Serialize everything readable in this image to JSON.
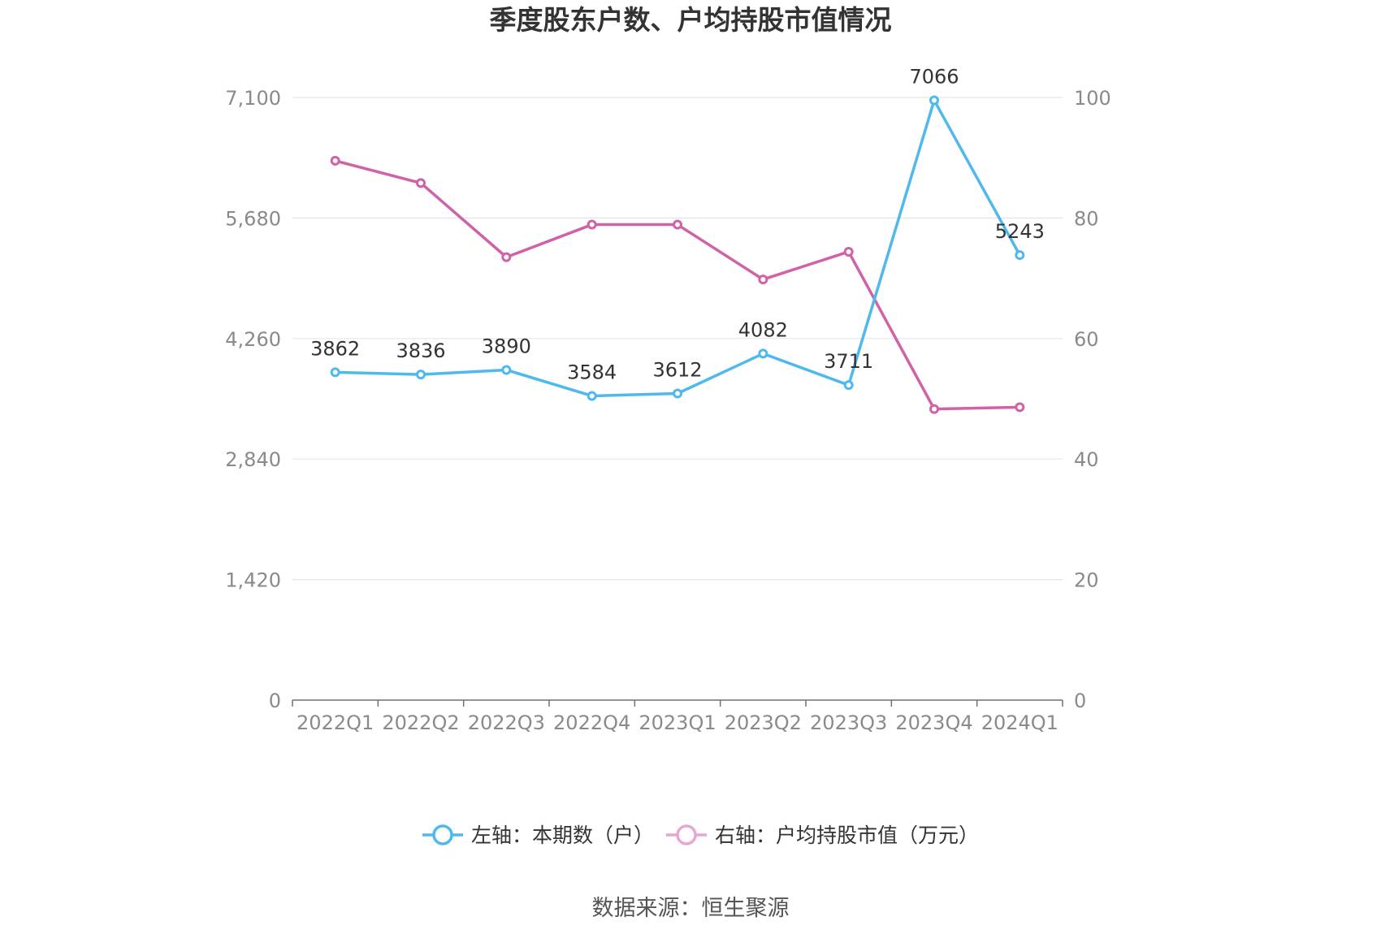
{
  "source": "数据来源：恒生聚源",
  "chart_data": {
    "type": "line",
    "title": "季度股东户数、户均持股市值情况",
    "categories": [
      "2022Q1",
      "2022Q2",
      "2022Q3",
      "2022Q4",
      "2023Q1",
      "2023Q2",
      "2023Q3",
      "2023Q4",
      "2024Q1"
    ],
    "axes": {
      "left": {
        "min": 0,
        "max": 7100,
        "ticks": [
          0,
          1420,
          2840,
          4260,
          5680,
          7100
        ],
        "tick_labels": [
          "0",
          "1,420",
          "2,840",
          "4,260",
          "5,680",
          "7,100"
        ]
      },
      "right": {
        "min": 0,
        "max": 100,
        "ticks": [
          0,
          20,
          40,
          60,
          80,
          100
        ],
        "tick_labels": [
          "0",
          "20",
          "40",
          "60",
          "80",
          "100"
        ]
      }
    },
    "grid": true,
    "legend_position": "bottom",
    "series": [
      {
        "name": "左轴：本期数（户）",
        "axis": "left",
        "color": "#4fb8ec",
        "show_labels": true,
        "values": [
          3862,
          3836,
          3890,
          3584,
          3612,
          4082,
          3711,
          7066,
          5243
        ],
        "labels": [
          "3862",
          "3836",
          "3890",
          "3584",
          "3612",
          "4082",
          "3711",
          "7066",
          "5243"
        ]
      },
      {
        "name": "右轴：户均持股市值（万元）",
        "axis": "right",
        "color": "#d062a8",
        "legend_color": "#e8a7d0",
        "show_labels": false,
        "values": [
          89.5,
          85.8,
          73.5,
          78.9,
          78.9,
          69.8,
          74.4,
          48.3,
          48.6
        ]
      }
    ]
  }
}
